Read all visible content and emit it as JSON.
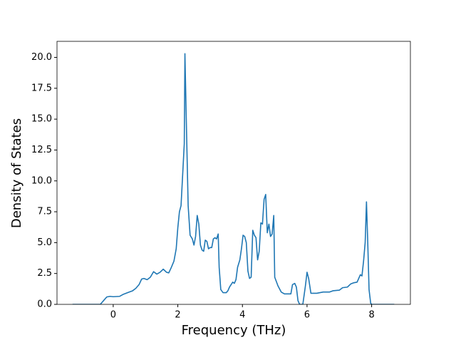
{
  "chart_data": {
    "type": "line",
    "xlabel": "Frequency (THz)",
    "ylabel": "Density of States",
    "color": "#1f77b4",
    "x": [
      -1.26,
      -0.4,
      -0.3,
      -0.2,
      -0.1,
      0,
      0.2,
      0.3,
      0.4,
      0.5,
      0.6,
      0.7,
      0.8,
      0.88,
      0.95,
      1.05,
      1.15,
      1.25,
      1.35,
      1.45,
      1.55,
      1.65,
      1.72,
      1.8,
      1.88,
      1.95,
      2.0,
      2.05,
      2.1,
      2.15,
      2.2,
      2.22,
      2.27,
      2.32,
      2.38,
      2.45,
      2.5,
      2.55,
      2.6,
      2.65,
      2.7,
      2.75,
      2.8,
      2.85,
      2.9,
      2.95,
      3.0,
      3.05,
      3.1,
      3.15,
      3.2,
      3.25,
      3.28,
      3.33,
      3.4,
      3.5,
      3.55,
      3.6,
      3.7,
      3.75,
      3.8,
      3.85,
      3.92,
      3.97,
      4.02,
      4.07,
      4.12,
      4.17,
      4.22,
      4.27,
      4.32,
      4.37,
      4.42,
      4.47,
      4.52,
      4.57,
      4.62,
      4.67,
      4.72,
      4.77,
      4.82,
      4.87,
      4.92,
      4.97,
      5.0,
      5.1,
      5.2,
      5.3,
      5.4,
      5.5,
      5.55,
      5.62,
      5.67,
      5.72,
      5.77,
      5.87,
      5.95,
      6.0,
      6.05,
      6.12,
      6.3,
      6.5,
      6.7,
      6.8,
      7.0,
      7.1,
      7.25,
      7.35,
      7.45,
      7.55,
      7.65,
      7.7,
      7.75,
      7.8,
      7.84,
      7.88,
      7.92,
      7.97,
      8.0,
      8.7
    ],
    "values": [
      0,
      0,
      0.3,
      0.6,
      0.65,
      0.62,
      0.65,
      0.8,
      0.9,
      1.0,
      1.1,
      1.3,
      1.6,
      2.05,
      2.1,
      2.0,
      2.2,
      2.65,
      2.45,
      2.6,
      2.85,
      2.6,
      2.55,
      3.0,
      3.5,
      4.5,
      6.2,
      7.5,
      8.0,
      10.5,
      13.0,
      20.3,
      14.0,
      8.0,
      5.6,
      5.3,
      4.8,
      5.5,
      7.2,
      6.5,
      4.8,
      4.4,
      4.3,
      5.2,
      5.1,
      4.5,
      4.6,
      4.6,
      5.3,
      5.4,
      5.3,
      5.7,
      3.0,
      1.2,
      0.95,
      0.95,
      1.1,
      1.4,
      1.8,
      1.7,
      2.0,
      3.0,
      3.6,
      4.5,
      5.6,
      5.5,
      5.0,
      2.7,
      2.1,
      2.2,
      6.0,
      5.6,
      5.4,
      3.6,
      4.3,
      6.6,
      6.5,
      8.5,
      8.9,
      5.8,
      6.5,
      5.5,
      5.7,
      7.2,
      2.2,
      1.5,
      1.0,
      0.85,
      0.85,
      0.85,
      1.6,
      1.7,
      1.4,
      0.3,
      0,
      0,
      1.5,
      2.6,
      2.1,
      0.9,
      0.9,
      1.0,
      1.0,
      1.1,
      1.15,
      1.35,
      1.4,
      1.65,
      1.75,
      1.8,
      2.4,
      2.3,
      3.5,
      5.0,
      8.3,
      5.0,
      1.2,
      0.1,
      0,
      0
    ],
    "xlim": [
      -1.74,
      9.2
    ],
    "ylim": [
      0,
      21.3
    ],
    "xticks": [
      0,
      2,
      4,
      6,
      8
    ],
    "yticks": [
      {
        "value": 0,
        "label": "0.0"
      },
      {
        "value": 2.5,
        "label": "2.5"
      },
      {
        "value": 5,
        "label": "5.0"
      },
      {
        "value": 7.5,
        "label": "7.5"
      },
      {
        "value": 10,
        "label": "10.0"
      },
      {
        "value": 12.5,
        "label": "12.5"
      },
      {
        "value": 15,
        "label": "15.0"
      },
      {
        "value": 17.5,
        "label": "17.5"
      },
      {
        "value": 20,
        "label": "20.0"
      }
    ]
  }
}
